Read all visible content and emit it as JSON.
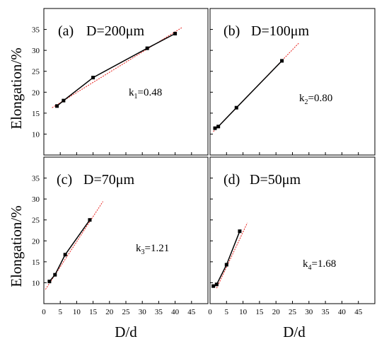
{
  "figure": {
    "ylabel": "Elongation/%",
    "xlabel": "D/d"
  },
  "chart_data": [
    {
      "type": "line",
      "panel_label": "(a)",
      "title": "D=200μm",
      "slope_label": {
        "k": "k",
        "sub": "1",
        "value": "=0.48"
      },
      "xlim": [
        0,
        50
      ],
      "ylim": [
        5,
        40
      ],
      "xticks": [
        0,
        5,
        10,
        15,
        20,
        25,
        30,
        35,
        40,
        45
      ],
      "yticks": [
        10,
        15,
        20,
        25,
        30,
        35
      ],
      "show_xtick_labels": false,
      "show_ytick_labels": true,
      "x": [
        4,
        6,
        15,
        31.5,
        40
      ],
      "y": [
        16.7,
        18,
        23.5,
        30.5,
        34
      ],
      "fit": {
        "x": [
          2.5,
          42
        ],
        "y": [
          16.3,
          35.4
        ]
      },
      "colors": {
        "data": "#000000",
        "fit": "#e8201c"
      }
    },
    {
      "type": "line",
      "panel_label": "(b)",
      "title": "D=100μm",
      "slope_label": {
        "k": "k",
        "sub": "2",
        "value": "=0.80"
      },
      "xlim": [
        0,
        50
      ],
      "ylim": [
        5,
        40
      ],
      "xticks": [
        0,
        5,
        10,
        15,
        20,
        25,
        30,
        35,
        40,
        45
      ],
      "yticks": [
        10,
        15,
        20,
        25,
        30,
        35
      ],
      "show_xtick_labels": false,
      "show_ytick_labels": false,
      "x": [
        1.5,
        2.5,
        8,
        21.8
      ],
      "y": [
        11.4,
        11.8,
        16.3,
        27.5
      ],
      "fit": {
        "x": [
          1,
          27
        ],
        "y": [
          10.6,
          31.8
        ]
      },
      "colors": {
        "data": "#000000",
        "fit": "#e8201c"
      }
    },
    {
      "type": "line",
      "panel_label": "(c)",
      "title": "D=70μm",
      "slope_label": {
        "k": "k",
        "sub": "3",
        "value": "=1.21"
      },
      "xlim": [
        0,
        50
      ],
      "ylim": [
        5,
        40
      ],
      "xticks": [
        0,
        5,
        10,
        15,
        20,
        25,
        30,
        35,
        40,
        45
      ],
      "yticks": [
        10,
        15,
        20,
        25,
        30,
        35
      ],
      "show_xtick_labels": true,
      "show_ytick_labels": true,
      "x": [
        1.7,
        3.4,
        6.5,
        14
      ],
      "y": [
        10.3,
        11.9,
        16.7,
        25
      ],
      "fit": {
        "x": [
          0.5,
          18
        ],
        "y": [
          8.4,
          29.4
        ]
      },
      "colors": {
        "data": "#000000",
        "fit": "#e8201c"
      }
    },
    {
      "type": "line",
      "panel_label": "(d)",
      "title": "D=50μm",
      "slope_label": {
        "k": "k",
        "sub": "4",
        "value": "=1.68"
      },
      "xlim": [
        0,
        50
      ],
      "ylim": [
        5,
        40
      ],
      "xticks": [
        0,
        5,
        10,
        15,
        20,
        25,
        30,
        35,
        40,
        45
      ],
      "yticks": [
        10,
        15,
        20,
        25,
        30,
        35
      ],
      "show_xtick_labels": true,
      "show_ytick_labels": false,
      "x": [
        1,
        2,
        5,
        9
      ],
      "y": [
        9.2,
        9.6,
        14.3,
        22.3
      ],
      "fit": {
        "x": [
          2,
          11.3
        ],
        "y": [
          8.7,
          24.3
        ]
      },
      "colors": {
        "data": "#000000",
        "fit": "#e8201c"
      }
    }
  ]
}
